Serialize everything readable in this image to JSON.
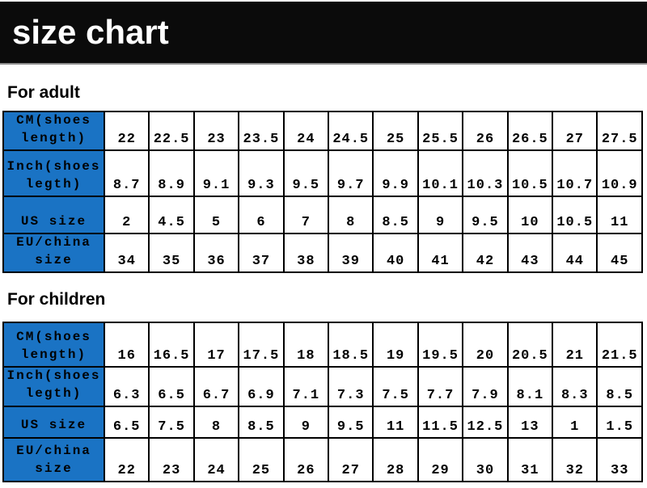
{
  "banner": {
    "title": "size chart"
  },
  "colors": {
    "banner_bg": "#0b0b0b",
    "banner_text": "#ffffff",
    "header_fill": "#1a73c4",
    "table_border": "#000000",
    "table_text": "#000000"
  },
  "chart_data": [
    {
      "type": "table",
      "title": "For adult",
      "row_headers": [
        "CM(shoes length)",
        "Inch(shoes legth)",
        "US size",
        "EU/china size"
      ],
      "row_header_lines": [
        [
          "CM(shoes",
          "length)"
        ],
        [
          "Inch(shoes",
          "legth)"
        ],
        [
          "US size"
        ],
        [
          "EU/china",
          "size"
        ]
      ],
      "rows": [
        [
          "22",
          "22.5",
          "23",
          "23.5",
          "24",
          "24.5",
          "25",
          "25.5",
          "26",
          "26.5",
          "27",
          "27.5"
        ],
        [
          "8.7",
          "8.9",
          "9.1",
          "9.3",
          "9.5",
          "9.7",
          "9.9",
          "10.1",
          "10.3",
          "10.5",
          "10.7",
          "10.9"
        ],
        [
          "2",
          "4.5",
          "5",
          "6",
          "7",
          "8",
          "8.5",
          "9",
          "9.5",
          "10",
          "10.5",
          "11"
        ],
        [
          "34",
          "35",
          "36",
          "37",
          "38",
          "39",
          "40",
          "41",
          "42",
          "43",
          "44",
          "45"
        ]
      ]
    },
    {
      "type": "table",
      "title": "For children",
      "row_headers": [
        "CM(shoes length)",
        "Inch(shoes legth)",
        "US size",
        "EU/china size"
      ],
      "row_header_lines": [
        [
          "CM(shoes",
          "length)"
        ],
        [
          "Inch(shoes",
          "legth)"
        ],
        [
          "US size"
        ],
        [
          "EU/china",
          "size"
        ]
      ],
      "rows": [
        [
          "16",
          "16.5",
          "17",
          "17.5",
          "18",
          "18.5",
          "19",
          "19.5",
          "20",
          "20.5",
          "21",
          "21.5"
        ],
        [
          "6.3",
          "6.5",
          "6.7",
          "6.9",
          "7.1",
          "7.3",
          "7.5",
          "7.7",
          "7.9",
          "8.1",
          "8.3",
          "8.5"
        ],
        [
          "6.5",
          "7.5",
          "8",
          "8.5",
          "9",
          "9.5",
          "11",
          "11.5",
          "12.5",
          "13",
          "1",
          "1.5"
        ],
        [
          "22",
          "23",
          "24",
          "25",
          "26",
          "27",
          "28",
          "29",
          "30",
          "31",
          "32",
          "33"
        ]
      ]
    }
  ]
}
